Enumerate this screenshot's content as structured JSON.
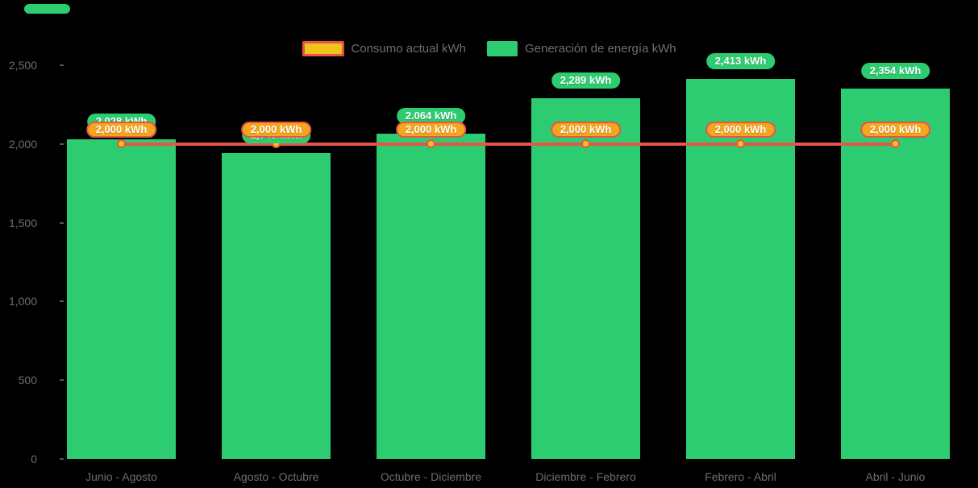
{
  "legend": {
    "consumption_label": "Consumo actual kWh",
    "generation_label": "Generación de energía kWh"
  },
  "y_axis": {
    "ticks": [
      {
        "value": 0,
        "label": "0"
      },
      {
        "value": 500,
        "label": "500"
      },
      {
        "value": 1000,
        "label": "1,000"
      },
      {
        "value": 1500,
        "label": "1,500"
      },
      {
        "value": 2000,
        "label": "2,000"
      },
      {
        "value": 2500,
        "label": "2,500"
      }
    ]
  },
  "chart_data": {
    "type": "bar",
    "categories": [
      "Junio - Agosto",
      "Agosto - Octubre",
      "Octubre - Diciembre",
      "Diciembre - Febrero",
      "Febrero - Abril",
      "Abril - Junio"
    ],
    "series": [
      {
        "name": "Generación de energía kWh",
        "type": "bar",
        "color": "#2ecc71",
        "values": [
          2028,
          1945,
          2064,
          2289,
          2413,
          2354
        ],
        "labels": [
          "2,028 kWh",
          "1,945 kWh",
          "2.064 kWh",
          "2,289 kWh",
          "2,413 kWh",
          "2,354 kWh"
        ]
      },
      {
        "name": "Consumo actual kWh",
        "type": "line",
        "color": "#e8544a",
        "values": [
          2000,
          2000,
          2000,
          2000,
          2000,
          2000
        ],
        "labels": [
          "2,000 kWh",
          "2,000 kWh",
          "2,000 kWh",
          "2,000 kWh",
          "2,000 kWh",
          "2,000 kWh"
        ]
      }
    ],
    "title": "",
    "xlabel": "",
    "ylabel": "",
    "ylim": [
      0,
      2500
    ],
    "grid": false,
    "legend_position": "top",
    "background": "#000000",
    "colors": {
      "bar_green": "#2ecc71",
      "line_red": "#e8544a",
      "consumption_label_fill": "#f4a71c",
      "legend_swatch_yellow": "#f0c41b",
      "point_gold": "#f0c41b",
      "axis_text": "#6e6e6e",
      "value_label_text": "#ffffff"
    }
  }
}
